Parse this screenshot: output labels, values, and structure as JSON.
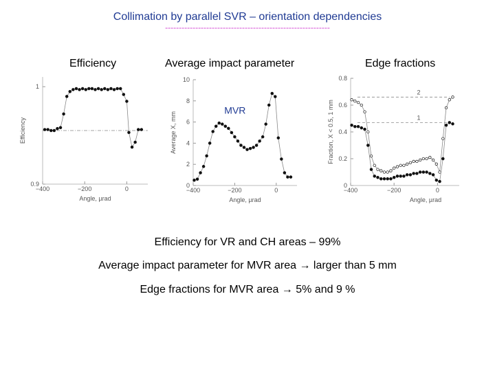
{
  "slide": {
    "title": "Collimation by parallel SVR – orientation dependencies",
    "dashes": "------------------------------------------------------------",
    "panel_labels": {
      "efficiency": "Efficiency",
      "impact": "Average impact parameter",
      "edge": "Edge fractions"
    },
    "summary": [
      "Efficiency for VR and CH areas – 99%",
      "Average impact parameter for MVR area → larger than 5 mm",
      "Edge fractions for MVR area → 5% and 9 %"
    ]
  },
  "chart_data": [
    {
      "type": "scatter",
      "ylabel": "Efficiency",
      "xlabel": "Angle, µrad",
      "xlim": [
        -400,
        100
      ],
      "ylim": [
        0.9,
        1.01
      ],
      "xticks": [
        -400,
        -200,
        0
      ],
      "yticks": [
        0.9,
        1
      ],
      "tick_labels_y": [
        "0.9",
        "1"
      ],
      "tick_labels_x": [
        "-400",
        "-200",
        "0"
      ],
      "reference_line": 0.955,
      "series": [
        {
          "x": [
            -390,
            -375,
            -360,
            -345,
            -330,
            -315,
            -300,
            -285,
            -270,
            -255,
            -240,
            -225,
            -210,
            -195,
            -180,
            -165,
            -150,
            -135,
            -120,
            -105,
            -90,
            -75,
            -60,
            -45,
            -30,
            -15,
            0,
            10,
            25,
            40,
            55,
            70
          ],
          "y": [
            0.956,
            0.956,
            0.955,
            0.955,
            0.957,
            0.958,
            0.972,
            0.99,
            0.995,
            0.997,
            0.998,
            0.997,
            0.998,
            0.997,
            0.998,
            0.998,
            0.997,
            0.998,
            0.997,
            0.998,
            0.997,
            0.998,
            0.997,
            0.998,
            0.998,
            0.992,
            0.985,
            0.953,
            0.938,
            0.943,
            0.956,
            0.956
          ]
        }
      ]
    },
    {
      "type": "scatter",
      "ylabel": "Average X, mm",
      "xlabel": "Angle, µrad",
      "xlim": [
        -400,
        100
      ],
      "ylim": [
        0,
        10
      ],
      "xticks": [
        -400,
        -200,
        0
      ],
      "yticks": [
        0,
        2,
        4,
        6,
        8,
        10
      ],
      "tick_labels_y": [
        "0",
        "2",
        "4",
        "6",
        "8",
        "10"
      ],
      "tick_labels_x": [
        "-400",
        "-200",
        "0"
      ],
      "annotation": "MVR",
      "series": [
        {
          "x": [
            -395,
            -380,
            -365,
            -350,
            -335,
            -320,
            -305,
            -290,
            -275,
            -260,
            -245,
            -230,
            -215,
            -200,
            -185,
            -170,
            -155,
            -140,
            -125,
            -110,
            -95,
            -80,
            -65,
            -50,
            -35,
            -20,
            -5,
            10,
            25,
            40,
            55,
            70
          ],
          "y": [
            0.5,
            0.6,
            1.2,
            1.8,
            2.8,
            4.0,
            5.1,
            5.6,
            5.9,
            5.8,
            5.6,
            5.4,
            5.0,
            4.6,
            4.2,
            3.8,
            3.6,
            3.4,
            3.5,
            3.6,
            3.8,
            4.2,
            4.6,
            5.8,
            7.6,
            8.7,
            8.4,
            4.5,
            2.5,
            1.2,
            0.8,
            0.8
          ]
        }
      ]
    },
    {
      "type": "scatter",
      "ylabel": "Fraction, X < 0.5, 1 mm",
      "xlabel": "Angle, µrad",
      "xlim": [
        -400,
        100
      ],
      "ylim": [
        0,
        0.8
      ],
      "xticks": [
        -400,
        -200,
        0
      ],
      "yticks": [
        0,
        0.2,
        0.4,
        0.6,
        0.8
      ],
      "tick_labels_y": [
        "0",
        "0.2",
        "0.4",
        "0.6",
        "0.8"
      ],
      "tick_labels_x": [
        "-400",
        "-200",
        "0"
      ],
      "reference_lines": [
        {
          "y": 0.66,
          "label": "2"
        },
        {
          "y": 0.47,
          "label": "1"
        }
      ],
      "series": [
        {
          "name": "2",
          "x": [
            -395,
            -380,
            -365,
            -350,
            -335,
            -320,
            -305,
            -290,
            -275,
            -260,
            -245,
            -230,
            -215,
            -200,
            -185,
            -170,
            -155,
            -140,
            -125,
            -110,
            -95,
            -80,
            -65,
            -50,
            -35,
            -20,
            -5,
            10,
            25,
            40,
            55,
            70
          ],
          "y": [
            0.64,
            0.63,
            0.62,
            0.6,
            0.55,
            0.4,
            0.22,
            0.15,
            0.12,
            0.11,
            0.1,
            0.1,
            0.11,
            0.13,
            0.14,
            0.15,
            0.15,
            0.16,
            0.17,
            0.18,
            0.18,
            0.19,
            0.2,
            0.2,
            0.21,
            0.19,
            0.16,
            0.1,
            0.35,
            0.58,
            0.64,
            0.66
          ]
        },
        {
          "name": "1",
          "x": [
            -395,
            -380,
            -365,
            -350,
            -335,
            -320,
            -305,
            -290,
            -275,
            -260,
            -245,
            -230,
            -215,
            -200,
            -185,
            -170,
            -155,
            -140,
            -125,
            -110,
            -95,
            -80,
            -65,
            -50,
            -35,
            -20,
            -5,
            10,
            25,
            40,
            55,
            70
          ],
          "y": [
            0.45,
            0.44,
            0.44,
            0.43,
            0.42,
            0.3,
            0.12,
            0.07,
            0.06,
            0.05,
            0.05,
            0.05,
            0.05,
            0.06,
            0.07,
            0.07,
            0.07,
            0.08,
            0.08,
            0.09,
            0.09,
            0.1,
            0.1,
            0.1,
            0.09,
            0.08,
            0.04,
            0.03,
            0.2,
            0.45,
            0.47,
            0.46
          ]
        }
      ]
    }
  ]
}
